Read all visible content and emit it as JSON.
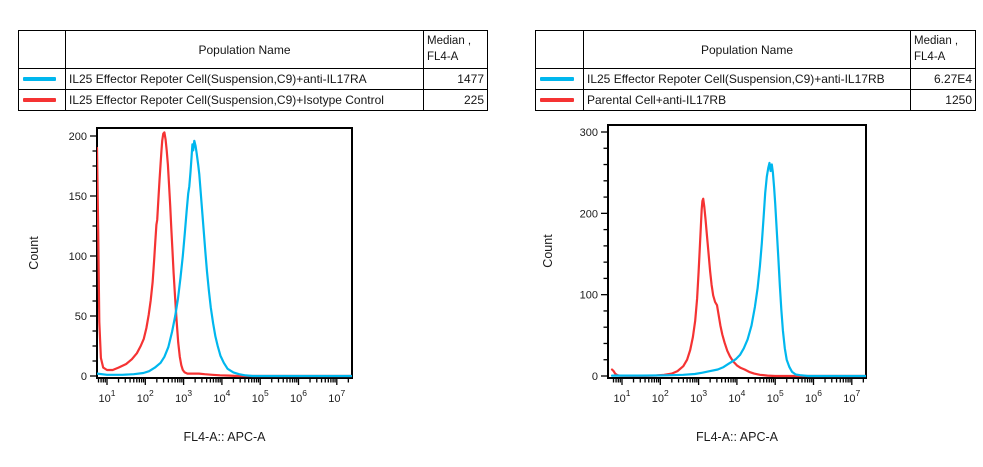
{
  "app": {
    "background": "#ffffff",
    "accent_cyan": "#00b7ee",
    "accent_red": "#f53333",
    "table_header_gray": "#c1c1c1"
  },
  "panels": [
    {
      "table": {
        "header": {
          "swatch_col": "",
          "population": "Population Name",
          "median_line1": "Median ,",
          "median_line2": "FL4-A"
        },
        "rows": [
          {
            "swatch_color": "#00b7ee",
            "name": "IL25 Effector Repoter Cell(Suspension,C9)+anti-IL17RA",
            "median": "1477"
          },
          {
            "swatch_color": "#f53333",
            "name": "IL25 Effector Repoter Cell(Suspension,C9)+Isotype Control",
            "median": "225"
          }
        ]
      }
    },
    {
      "table": {
        "header": {
          "swatch_col": "",
          "population": "Population Name",
          "median_line1": "Median ,",
          "median_line2": "FL4-A"
        },
        "rows": [
          {
            "swatch_color": "#00b7ee",
            "name": "IL25 Effector Repoter Cell(Suspension,C9)+anti-IL17RB",
            "median": "6.27E4"
          },
          {
            "swatch_color": "#f53333",
            "name": "Parental Cell+anti-IL17RB",
            "median": "1250"
          }
        ]
      }
    }
  ],
  "chart_data": [
    {
      "type": "line",
      "subtype": "flow-histogram",
      "xlabel": "FL4-A:: APC-A",
      "ylabel": "Count",
      "x_scale": "log",
      "xlim_log": [
        0.74,
        7.38
      ],
      "x_tick_exponents": [
        1,
        2,
        3,
        4,
        5,
        6,
        7
      ],
      "ylim": [
        0,
        208
      ],
      "y_major_ticks": [
        0,
        50,
        100,
        150,
        200
      ],
      "y_minor_step": 12.5,
      "grid": false,
      "legend": "table-above",
      "series": [
        {
          "name": "IL25 Effector Repoter Cell(Suspension,C9)+Isotype Control",
          "color": "#f53333",
          "median_fl4a": 225,
          "points_logx_count": [
            [
              0.74,
              190
            ],
            [
              0.77,
              120
            ],
            [
              0.8,
              45
            ],
            [
              0.84,
              15
            ],
            [
              0.9,
              7
            ],
            [
              1.0,
              5
            ],
            [
              1.15,
              5
            ],
            [
              1.3,
              7
            ],
            [
              1.5,
              10
            ],
            [
              1.65,
              14
            ],
            [
              1.78,
              19
            ],
            [
              1.88,
              25
            ],
            [
              1.96,
              31
            ],
            [
              2.03,
              40
            ],
            [
              2.09,
              51
            ],
            [
              2.14,
              63
            ],
            [
              2.19,
              78
            ],
            [
              2.23,
              96
            ],
            [
              2.26,
              112
            ],
            [
              2.29,
              126
            ],
            [
              2.31,
              130
            ],
            [
              2.34,
              146
            ],
            [
              2.37,
              163
            ],
            [
              2.4,
              177
            ],
            [
              2.42,
              187
            ],
            [
              2.44,
              196
            ],
            [
              2.47,
              202
            ],
            [
              2.5,
              203
            ],
            [
              2.53,
              197
            ],
            [
              2.56,
              188
            ],
            [
              2.59,
              176
            ],
            [
              2.62,
              160
            ],
            [
              2.65,
              142
            ],
            [
              2.68,
              123
            ],
            [
              2.71,
              104
            ],
            [
              2.74,
              86
            ],
            [
              2.78,
              64
            ],
            [
              2.82,
              45
            ],
            [
              2.86,
              28
            ],
            [
              2.9,
              16
            ],
            [
              2.94,
              9
            ],
            [
              2.98,
              5
            ],
            [
              3.03,
              3
            ],
            [
              3.1,
              2
            ],
            [
              3.25,
              2
            ],
            [
              3.4,
              2
            ],
            [
              3.55,
              1.5
            ],
            [
              3.75,
              1
            ],
            [
              3.95,
              0.6
            ],
            [
              4.2,
              0.3
            ],
            [
              4.4,
              0
            ],
            [
              7.38,
              0
            ]
          ]
        },
        {
          "name": "IL25 Effector Repoter Cell(Suspension,C9)+anti-IL17RA",
          "color": "#00b7ee",
          "median_fl4a": 1477,
          "points_logx_count": [
            [
              0.74,
              2
            ],
            [
              1.0,
              1
            ],
            [
              1.4,
              1
            ],
            [
              1.7,
              1.5
            ],
            [
              1.95,
              2.5
            ],
            [
              2.1,
              4
            ],
            [
              2.25,
              7
            ],
            [
              2.4,
              11
            ],
            [
              2.5,
              16
            ],
            [
              2.6,
              24
            ],
            [
              2.7,
              37
            ],
            [
              2.78,
              50
            ],
            [
              2.85,
              64
            ],
            [
              2.92,
              82
            ],
            [
              2.98,
              100
            ],
            [
              3.03,
              118
            ],
            [
              3.08,
              138
            ],
            [
              3.12,
              152
            ],
            [
              3.15,
              158
            ],
            [
              3.18,
              170
            ],
            [
              3.21,
              183
            ],
            [
              3.23,
              193
            ],
            [
              3.25,
              188
            ],
            [
              3.28,
              196
            ],
            [
              3.31,
              192
            ],
            [
              3.34,
              186
            ],
            [
              3.38,
              176
            ],
            [
              3.41,
              168
            ],
            [
              3.45,
              152
            ],
            [
              3.49,
              135
            ],
            [
              3.53,
              119
            ],
            [
              3.57,
              103
            ],
            [
              3.61,
              87
            ],
            [
              3.66,
              71
            ],
            [
              3.71,
              57
            ],
            [
              3.77,
              44
            ],
            [
              3.83,
              33
            ],
            [
              3.89,
              25
            ],
            [
              3.96,
              17
            ],
            [
              4.05,
              11
            ],
            [
              4.15,
              6
            ],
            [
              4.3,
              3
            ],
            [
              4.45,
              1.5
            ],
            [
              4.62,
              0.5
            ],
            [
              4.8,
              0
            ],
            [
              7.38,
              0
            ]
          ]
        }
      ]
    },
    {
      "type": "line",
      "subtype": "flow-histogram",
      "xlabel": "FL4-A:: APC-A",
      "ylabel": "Count",
      "x_scale": "log",
      "xlim_log": [
        0.74,
        7.38
      ],
      "x_tick_exponents": [
        1,
        2,
        3,
        4,
        5,
        6,
        7
      ],
      "ylim": [
        0,
        310
      ],
      "y_major_ticks": [
        0,
        100,
        200,
        300
      ],
      "y_minor_step": 20,
      "grid": false,
      "legend": "table-above",
      "series": [
        {
          "name": "Parental Cell+anti-IL17RB",
          "color": "#f53333",
          "median_fl4a": 1250,
          "points_logx_count": [
            [
              0.74,
              8
            ],
            [
              0.78,
              6
            ],
            [
              0.82,
              3
            ],
            [
              0.88,
              1
            ],
            [
              0.95,
              0.4
            ],
            [
              1.2,
              0.2
            ],
            [
              1.6,
              0.3
            ],
            [
              1.9,
              0.6
            ],
            [
              2.1,
              1.5
            ],
            [
              2.3,
              3
            ],
            [
              2.45,
              6
            ],
            [
              2.6,
              12
            ],
            [
              2.7,
              20
            ],
            [
              2.78,
              32
            ],
            [
              2.85,
              48
            ],
            [
              2.91,
              68
            ],
            [
              2.96,
              95
            ],
            [
              3.0,
              128
            ],
            [
              3.03,
              155
            ],
            [
              3.06,
              185
            ],
            [
              3.08,
              205
            ],
            [
              3.1,
              215
            ],
            [
              3.12,
              218
            ],
            [
              3.15,
              208
            ],
            [
              3.18,
              193
            ],
            [
              3.22,
              172
            ],
            [
              3.26,
              150
            ],
            [
              3.3,
              129
            ],
            [
              3.34,
              112
            ],
            [
              3.38,
              99
            ],
            [
              3.43,
              91
            ],
            [
              3.48,
              87
            ],
            [
              3.52,
              76
            ],
            [
              3.57,
              62
            ],
            [
              3.62,
              51
            ],
            [
              3.68,
              41
            ],
            [
              3.75,
              31
            ],
            [
              3.82,
              24
            ],
            [
              3.9,
              18
            ],
            [
              4.0,
              13
            ],
            [
              4.1,
              10
            ],
            [
              4.2,
              8
            ],
            [
              4.32,
              5
            ],
            [
              4.45,
              3
            ],
            [
              4.6,
              1.5
            ],
            [
              4.8,
              0.5
            ],
            [
              5.0,
              0
            ],
            [
              7.38,
              0
            ]
          ]
        },
        {
          "name": "IL25 Effector Repoter Cell(Suspension,C9)+anti-IL17RB",
          "color": "#00b7ee",
          "median_fl4a": 62700,
          "points_logx_count": [
            [
              0.74,
              0.5
            ],
            [
              1.5,
              0.5
            ],
            [
              2.2,
              0.8
            ],
            [
              2.6,
              1.5
            ],
            [
              2.9,
              2.5
            ],
            [
              3.1,
              4
            ],
            [
              3.3,
              6
            ],
            [
              3.5,
              8
            ],
            [
              3.65,
              11
            ],
            [
              3.78,
              15
            ],
            [
              3.88,
              18
            ],
            [
              3.98,
              21
            ],
            [
              4.08,
              26
            ],
            [
              4.18,
              34
            ],
            [
              4.28,
              45
            ],
            [
              4.38,
              62
            ],
            [
              4.47,
              85
            ],
            [
              4.54,
              108
            ],
            [
              4.6,
              135
            ],
            [
              4.65,
              163
            ],
            [
              4.7,
              197
            ],
            [
              4.74,
              225
            ],
            [
              4.78,
              245
            ],
            [
              4.82,
              256
            ],
            [
              4.85,
              262
            ],
            [
              4.88,
              252
            ],
            [
              4.91,
              260
            ],
            [
              4.94,
              250
            ],
            [
              4.97,
              232
            ],
            [
              5.0,
              212
            ],
            [
              5.04,
              180
            ],
            [
              5.08,
              146
            ],
            [
              5.12,
              112
            ],
            [
              5.16,
              82
            ],
            [
              5.2,
              56
            ],
            [
              5.25,
              34
            ],
            [
              5.3,
              20
            ],
            [
              5.37,
              11
            ],
            [
              5.44,
              5
            ],
            [
              5.53,
              2
            ],
            [
              5.65,
              1
            ],
            [
              5.85,
              0
            ],
            [
              7.38,
              0
            ]
          ]
        }
      ]
    }
  ]
}
